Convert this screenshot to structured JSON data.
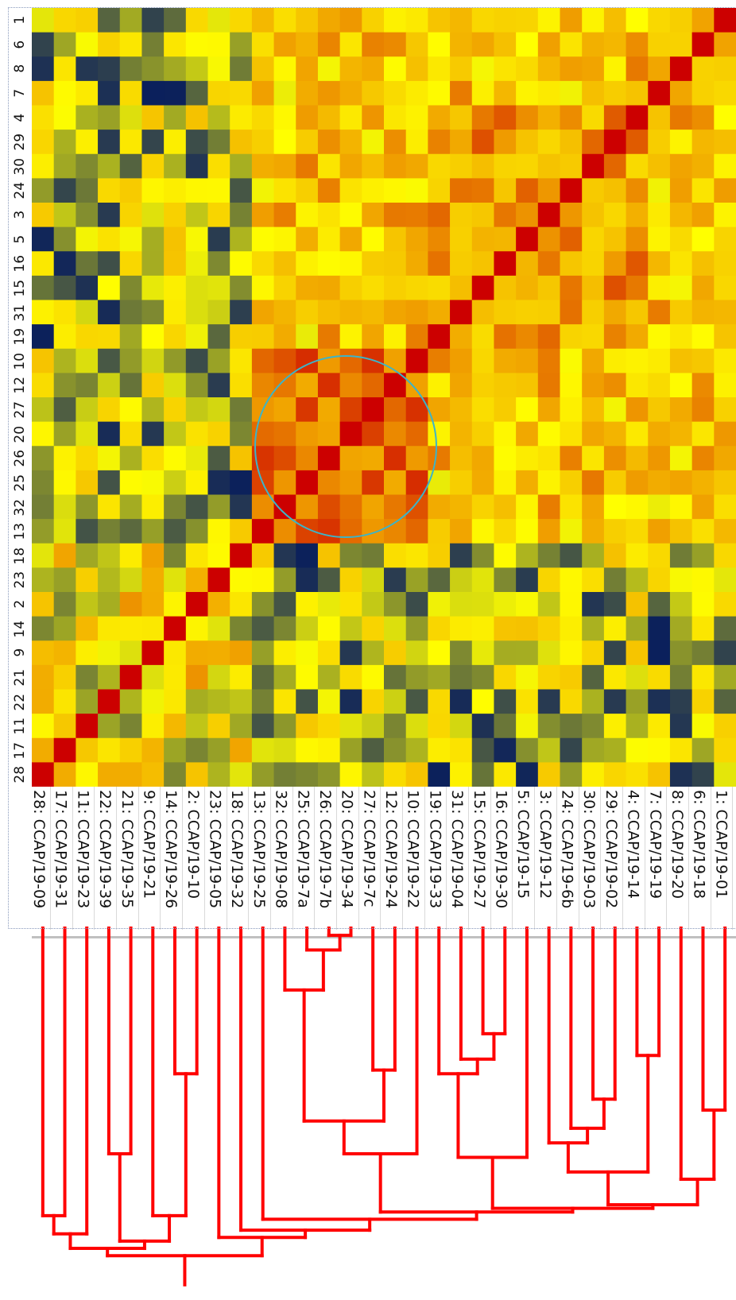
{
  "chart_data": {
    "type": "heatmap",
    "title": "",
    "xlabel": "",
    "ylabel": "",
    "row_labels": [
      "1",
      "6",
      "8",
      "7",
      "4",
      "29",
      "30",
      "24",
      "3",
      "5",
      "16",
      "15",
      "31",
      "19",
      "10",
      "12",
      "27",
      "20",
      "26",
      "25",
      "32",
      "13",
      "18",
      "23",
      "2",
      "14",
      "9",
      "21",
      "22",
      "11",
      "17",
      "28"
    ],
    "column_labels": [
      "28: CCAP/19-09",
      "17: CCAP/19-31",
      "11: CCAP/19-23",
      "22: CCAP/19-39",
      "21: CCAP/19-35",
      "9: CCAP/19-21",
      "14: CCAP/19-26",
      "2: CCAP/19-10",
      "23: CCAP/19-05",
      "18: CCAP/19-32",
      "13: CCAP/19-25",
      "32: CCAP/19-08",
      "25: CCAP/19-7a",
      "26: CCAP/19-7b",
      "20: CCAP/19-34",
      "27: CCAP/19-7c",
      "12: CCAP/19-24",
      "10: CCAP/19-22",
      "19: CCAP/19-33",
      "31: CCAP/19-04",
      "15: CCAP/19-27",
      "16: CCAP/19-30",
      "5: CCAP/19-15",
      "3: CCAP/19-12",
      "24: CCAP/19-6b",
      "30: CCAP/19-03",
      "29: CCAP/19-02",
      "4: CCAP/19-14",
      "7: CCAP/19-19",
      "8: CCAP/19-20",
      "6: CCAP/19-18",
      "1: CCAP/19-01"
    ],
    "color_scale": [
      "#0a1f5c",
      "#ffff00",
      "#f0a000",
      "#cc0000"
    ],
    "value_range": [
      0,
      1
    ],
    "dendrogram_color": "#ff0000",
    "highlight_circle_color": "#3cb4c8",
    "cluster_order_note": ""
  }
}
